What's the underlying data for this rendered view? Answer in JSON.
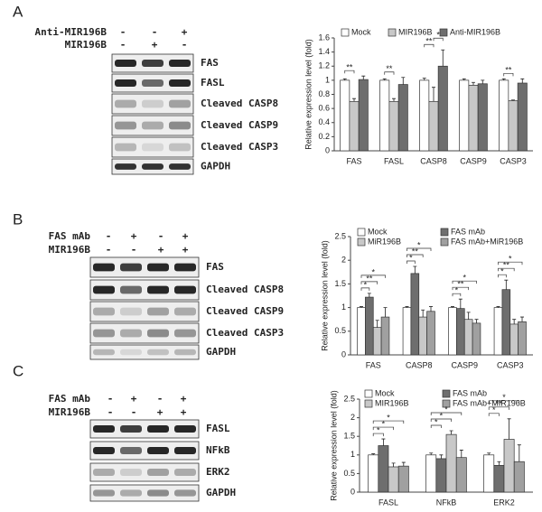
{
  "blots": [
    {
      "panel": "A",
      "treatments": [
        {
          "name": "Anti-MIR196B",
          "signs": [
            "-",
            "-",
            "+"
          ]
        },
        {
          "name": "MIR196B",
          "signs": [
            "-",
            "+",
            "-"
          ]
        }
      ],
      "bands": [
        "FAS",
        "FASL",
        "Cleaved CASP8",
        "Cleaved CASP9",
        "Cleaved CASP3",
        "GAPDH"
      ]
    },
    {
      "panel": "B",
      "treatments": [
        {
          "name": "FAS mAb",
          "signs": [
            "-",
            "+",
            "-",
            "+"
          ]
        },
        {
          "name": "MIR196B",
          "signs": [
            "-",
            "-",
            "+",
            "+"
          ]
        }
      ],
      "bands": [
        "FAS",
        "Cleaved CASP8",
        "Cleaved CASP9",
        "Cleaved CASP3",
        "GAPDH"
      ]
    },
    {
      "panel": "C",
      "treatments": [
        {
          "name": "FAS mAb",
          "signs": [
            "-",
            "+",
            "-",
            "+"
          ]
        },
        {
          "name": "MIR196B",
          "signs": [
            "-",
            "-",
            "+",
            "+"
          ]
        }
      ],
      "bands": [
        "FASL",
        "NFkB",
        "ERK2",
        "GAPDH"
      ]
    }
  ],
  "chart_data": [
    {
      "type": "bar",
      "y_label": "Relative expression level (fold)",
      "categories": [
        "FAS",
        "FASL",
        "CASP8",
        "CASP9",
        "CASP3"
      ],
      "series": [
        {
          "name": "Mock",
          "color": "#ffffff",
          "values": [
            1.0,
            1.0,
            1.0,
            1.0,
            1.0
          ],
          "errors": [
            0.02,
            0.02,
            0.03,
            0.02,
            0.02
          ]
        },
        {
          "name": "MIR196B",
          "color": "#c8c8c8",
          "values": [
            0.7,
            0.7,
            0.7,
            0.93,
            0.71
          ],
          "errors": [
            0.04,
            0.04,
            0.2,
            0.04,
            0.01
          ]
        },
        {
          "name": "Anti-MIR196B",
          "color": "#6e6e6e",
          "values": [
            1.01,
            0.94,
            1.2,
            0.95,
            0.96
          ],
          "errors": [
            0.05,
            0.1,
            0.23,
            0.05,
            0.06
          ]
        }
      ],
      "annotations": [
        "**",
        "**",
        "**",
        "*",
        "**"
      ],
      "ylim": [
        0,
        1.6
      ],
      "yticks": [
        0,
        0.2,
        0.4,
        0.6,
        0.8,
        1,
        1.2,
        1.4,
        1.6
      ]
    },
    {
      "type": "bar",
      "y_label": "Relative expression level (fold)",
      "categories": [
        "FAS",
        "CASP8",
        "CASP9",
        "CASP3"
      ],
      "series": [
        {
          "name": "Mock",
          "color": "#ffffff",
          "values": [
            1.0,
            1.0,
            1.0,
            1.0
          ],
          "errors": [
            0.02,
            0.02,
            0.02,
            0.02
          ]
        },
        {
          "name": "FAS mAb",
          "color": "#6e6e6e",
          "values": [
            1.22,
            1.72,
            0.98,
            1.38
          ],
          "errors": [
            0.08,
            0.15,
            0.2,
            0.2
          ]
        },
        {
          "name": "MiR196B",
          "color": "#c8c8c8",
          "values": [
            0.58,
            0.8,
            0.75,
            0.65
          ],
          "errors": [
            0.15,
            0.15,
            0.15,
            0.1
          ]
        },
        {
          "name": "FAS mAb+MiR196B",
          "color": "#a0a0a0",
          "values": [
            0.8,
            0.92,
            0.67,
            0.7
          ],
          "errors": [
            0.2,
            0.1,
            0.08,
            0.1
          ]
        }
      ],
      "annotations": [
        "*",
        "**",
        "*",
        "*",
        "**",
        "*",
        "*",
        "**",
        "*",
        "*",
        "**",
        "*"
      ],
      "ylim": [
        0,
        2.5
      ],
      "yticks": [
        0,
        0.5,
        1,
        1.5,
        2,
        2.5
      ]
    },
    {
      "type": "bar",
      "y_label": "Relative expression level (fold)",
      "categories": [
        "FASL",
        "NFkB",
        "ERK2"
      ],
      "series": [
        {
          "name": "Mock",
          "color": "#ffffff",
          "values": [
            1.0,
            1.0,
            1.0
          ],
          "errors": [
            0.03,
            0.05,
            0.05
          ]
        },
        {
          "name": "FAS mAb",
          "color": "#6e6e6e",
          "values": [
            1.25,
            0.9,
            0.72
          ],
          "errors": [
            0.18,
            0.1,
            0.1
          ]
        },
        {
          "name": "MIR196B",
          "color": "#c8c8c8",
          "values": [
            0.68,
            1.55,
            1.42
          ],
          "errors": [
            0.1,
            0.1,
            0.55
          ]
        },
        {
          "name": "FAS mAb+MIR196B",
          "color": "#a0a0a0",
          "values": [
            0.7,
            0.93,
            0.82
          ],
          "errors": [
            0.1,
            0.2,
            0.45
          ]
        }
      ],
      "annotations": [
        "*",
        "*",
        "*",
        "*",
        "*",
        "*",
        "*",
        "**",
        "*"
      ],
      "ylim": [
        0,
        2.5
      ],
      "yticks": [
        0,
        0.5,
        1,
        1.5,
        2,
        2.5
      ]
    }
  ]
}
